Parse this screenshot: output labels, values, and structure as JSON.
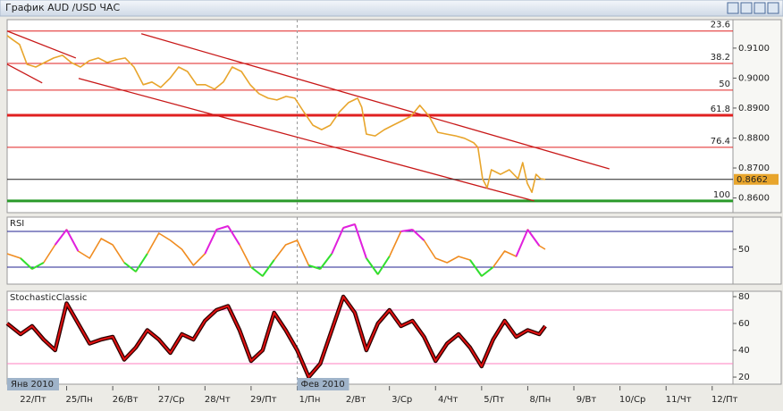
{
  "window": {
    "title": "График AUD /USD  ЧАС"
  },
  "time_axis": {
    "xlim": [
      -0.29,
      15.45
    ],
    "xticks": [
      {
        "value": 0,
        "label": "22/Пт"
      },
      {
        "value": 1,
        "label": "25/Пн"
      },
      {
        "value": 2,
        "label": "26/Вт"
      },
      {
        "value": 3,
        "label": "27/Ср"
      },
      {
        "value": 4,
        "label": "28/Чт"
      },
      {
        "value": 5,
        "label": "29/Пт"
      },
      {
        "value": 6,
        "label": "1/Пн"
      },
      {
        "value": 7,
        "label": "2/Вт"
      },
      {
        "value": 8,
        "label": "3/Ср"
      },
      {
        "value": 9,
        "label": "4/Чт"
      },
      {
        "value": 10,
        "label": "5/Пт"
      },
      {
        "value": 11,
        "label": "8/Пн"
      },
      {
        "value": 12,
        "label": "9/Вт"
      },
      {
        "value": 13,
        "label": "10/Ср"
      },
      {
        "value": 14,
        "label": "11/Чт"
      },
      {
        "value": 15,
        "label": "12/Пт"
      }
    ],
    "months": [
      {
        "value": -0.29,
        "label": "Янв 2010"
      },
      {
        "value": 6,
        "label": "Фев 2010"
      }
    ]
  },
  "chart_data": [
    {
      "type": "line",
      "ylim": [
        0.8551,
        0.9195
      ],
      "yticks": [
        {
          "value": 0.91,
          "label": "0.9100"
        },
        {
          "value": 0.9,
          "label": "0.9000"
        },
        {
          "value": 0.89,
          "label": "0.8900"
        },
        {
          "value": 0.88,
          "label": "0.8800"
        },
        {
          "value": 0.87,
          "label": "0.8700"
        },
        {
          "value": 0.86,
          "label": "0.8600"
        }
      ],
      "color": "#e8a52c",
      "x": [
        -0.29,
        -0.16,
        -0.02,
        0.14,
        0.33,
        0.52,
        0.72,
        0.91,
        1.1,
        1.3,
        1.49,
        1.69,
        1.88,
        2.07,
        2.27,
        2.46,
        2.66,
        2.85,
        3.04,
        3.24,
        3.43,
        3.62,
        3.82,
        4.01,
        4.21,
        4.4,
        4.59,
        4.79,
        4.98,
        5.17,
        5.37,
        5.56,
        5.76,
        5.95,
        6.14,
        6.34,
        6.53,
        6.72,
        6.92,
        7.11,
        7.31,
        7.4,
        7.5,
        7.69,
        7.89,
        8.08,
        8.28,
        8.47,
        8.66,
        8.86,
        9.05,
        9.24,
        9.44,
        9.63,
        9.83,
        9.92,
        10.02,
        10.12,
        10.21,
        10.41,
        10.6,
        10.79,
        10.89,
        10.99,
        11.09,
        11.18,
        11.28,
        11.38
      ],
      "values": [
        0.9142,
        0.9127,
        0.9112,
        0.9046,
        0.9037,
        0.9052,
        0.9067,
        0.9076,
        0.9052,
        0.9037,
        0.9058,
        0.9067,
        0.9052,
        0.9061,
        0.9067,
        0.9037,
        0.8978,
        0.8987,
        0.8969,
        0.8999,
        0.9037,
        0.9022,
        0.8978,
        0.8978,
        0.8963,
        0.8987,
        0.9037,
        0.9022,
        0.8978,
        0.8948,
        0.8933,
        0.8927,
        0.8939,
        0.8933,
        0.8888,
        0.8843,
        0.8828,
        0.8843,
        0.8888,
        0.8918,
        0.8933,
        0.8903,
        0.8813,
        0.8807,
        0.8828,
        0.8843,
        0.8858,
        0.8873,
        0.8909,
        0.8873,
        0.8819,
        0.8813,
        0.8807,
        0.8799,
        0.8784,
        0.8769,
        0.8664,
        0.8634,
        0.8694,
        0.8679,
        0.8694,
        0.8664,
        0.8718,
        0.8649,
        0.8619,
        0.8679,
        0.8664,
        0.8662
      ],
      "level_color": "#e02020",
      "levels": [
        {
          "label": "23.6",
          "value": 0.9157
        },
        {
          "label": "38.2",
          "value": 0.9049
        },
        {
          "label": "50",
          "value": 0.896
        },
        {
          "label": "61.8",
          "value": 0.8876,
          "bold": true
        },
        {
          "label": "76.4",
          "value": 0.8769
        },
        {
          "label": "100",
          "value": 0.859,
          "color": "#2a9a2a",
          "bold": true
        }
      ],
      "last_price": 0.8662,
      "trend_color": "#c81818",
      "trend_lines": [
        {
          "x": [
            -0.29,
            1.2
          ],
          "y": [
            0.9157,
            0.9067
          ]
        },
        {
          "x": [
            -0.29,
            0.47
          ],
          "y": [
            0.9046,
            0.8984
          ]
        },
        {
          "x": [
            2.62,
            12.77
          ],
          "y": [
            0.9148,
            0.8697
          ]
        },
        {
          "x": [
            1.26,
            11.14
          ],
          "y": [
            0.8999,
            0.859
          ]
        }
      ]
    },
    {
      "type": "line",
      "title": "RSI",
      "ylim": [
        11,
        86
      ],
      "yticks": [
        50
      ],
      "levels": [
        70,
        30
      ],
      "level_color": "#202090",
      "color": "#f08c20",
      "high_color": "#e020e0",
      "low_color": "#30e030",
      "x": [
        -0.29,
        0,
        0.25,
        0.5,
        0.75,
        1.0,
        1.25,
        1.5,
        1.75,
        2.0,
        2.25,
        2.5,
        2.75,
        3.0,
        3.25,
        3.5,
        3.75,
        4.0,
        4.25,
        4.5,
        4.75,
        5.0,
        5.25,
        5.5,
        5.75,
        6.0,
        6.25,
        6.5,
        6.75,
        7.0,
        7.25,
        7.5,
        7.75,
        8.0,
        8.25,
        8.5,
        8.75,
        9.0,
        9.25,
        9.5,
        9.75,
        10.0,
        10.25,
        10.5,
        10.75,
        11.0,
        11.25,
        11.38
      ],
      "values": [
        45,
        40,
        28,
        35,
        55,
        72,
        48,
        40,
        62,
        55,
        35,
        25,
        45,
        68,
        60,
        50,
        32,
        45,
        72,
        76,
        55,
        30,
        20,
        38,
        55,
        60,
        32,
        28,
        45,
        74,
        78,
        40,
        22,
        42,
        70,
        72,
        60,
        40,
        35,
        42,
        38,
        20,
        30,
        48,
        42,
        72,
        54,
        50
      ]
    },
    {
      "type": "line",
      "title": "StochasticClassic",
      "ylim": [
        14.7,
        84
      ],
      "yticks": [
        80,
        60,
        40,
        20
      ],
      "levels": [
        70,
        30
      ],
      "level_color": "#ff7fc0",
      "color": "#e01010",
      "shadow": "#2a0000",
      "x": [
        -0.29,
        0,
        0.25,
        0.5,
        0.75,
        1.0,
        1.25,
        1.5,
        1.75,
        2.0,
        2.25,
        2.5,
        2.75,
        3.0,
        3.25,
        3.5,
        3.75,
        4.0,
        4.25,
        4.5,
        4.75,
        5.0,
        5.25,
        5.5,
        5.75,
        6.0,
        6.25,
        6.5,
        6.75,
        7.0,
        7.25,
        7.5,
        7.75,
        8.0,
        8.25,
        8.5,
        8.75,
        9.0,
        9.25,
        9.5,
        9.75,
        10.0,
        10.25,
        10.5,
        10.75,
        11.0,
        11.25,
        11.38
      ],
      "values": [
        60,
        52,
        58,
        48,
        40,
        75,
        60,
        45,
        48,
        50,
        33,
        42,
        55,
        48,
        38,
        52,
        48,
        62,
        70,
        73,
        55,
        32,
        40,
        68,
        55,
        40,
        20,
        30,
        55,
        80,
        68,
        40,
        60,
        70,
        58,
        62,
        50,
        32,
        45,
        52,
        42,
        28,
        48,
        62,
        50,
        55,
        52,
        58
      ]
    }
  ]
}
